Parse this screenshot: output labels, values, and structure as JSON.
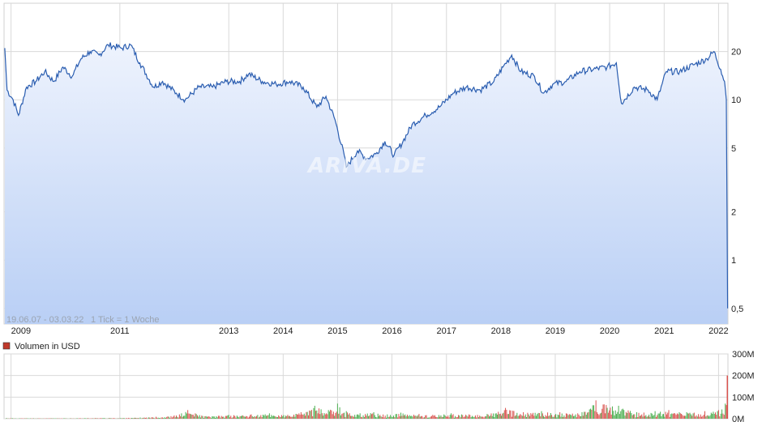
{
  "watermark": "ARIVA.DE",
  "range_info": "19.06.07 - 03.03.22",
  "tick_info": "1 Tick = 1 Woche",
  "volume_legend": "Volumen in USD",
  "colors": {
    "line": "#2a5db0",
    "fill_top": "#eef3fd",
    "fill_bottom": "#b9cff5",
    "grid": "#d9d9d9",
    "volume_up": "#4caf50",
    "volume_down": "#d9534f",
    "legend_box": "#c0392b"
  },
  "chart_data": [
    {
      "type": "area",
      "y_scale": "log",
      "ylim": [
        0.4,
        40
      ],
      "xlim": [
        "2008-11-15",
        "2022-03-05"
      ],
      "x_ticks": [
        {
          "label": "2009",
          "date": "2009-01-01"
        },
        {
          "label": "2011",
          "date": "2011-01-01"
        },
        {
          "label": "2013",
          "date": "2013-01-01"
        },
        {
          "label": "2014",
          "date": "2014-01-01"
        },
        {
          "label": "2015",
          "date": "2015-01-01"
        },
        {
          "label": "2016",
          "date": "2016-01-01"
        },
        {
          "label": "2017",
          "date": "2017-01-01"
        },
        {
          "label": "2018",
          "date": "2018-01-01"
        },
        {
          "label": "2019",
          "date": "2019-01-01"
        },
        {
          "label": "2020",
          "date": "2020-01-01"
        },
        {
          "label": "2021",
          "date": "2021-01-01"
        },
        {
          "label": "2022",
          "date": "2022-01-01"
        }
      ],
      "y_ticks": [
        {
          "label": "20",
          "value": 20
        },
        {
          "label": "10",
          "value": 10
        },
        {
          "label": "5",
          "value": 5
        },
        {
          "label": "2",
          "value": 2
        },
        {
          "label": "1",
          "value": 1
        },
        {
          "label": "0,5",
          "value": 0.5
        }
      ],
      "series": [
        {
          "points": [
            [
              "2008-11-20",
              21
            ],
            [
              "2008-12-05",
              11.5
            ],
            [
              "2009-01-15",
              10
            ],
            [
              "2009-02-20",
              8
            ],
            [
              "2009-04-15",
              12
            ],
            [
              "2009-06-15",
              13
            ],
            [
              "2009-08-15",
              15
            ],
            [
              "2009-10-15",
              13
            ],
            [
              "2009-12-15",
              16
            ],
            [
              "2010-02-15",
              14
            ],
            [
              "2010-04-15",
              18
            ],
            [
              "2010-06-15",
              20
            ],
            [
              "2010-08-15",
              19
            ],
            [
              "2010-10-15",
              22
            ],
            [
              "2011-01-15",
              21
            ],
            [
              "2011-03-15",
              22
            ],
            [
              "2011-05-15",
              17
            ],
            [
              "2011-08-15",
              12
            ],
            [
              "2011-10-15",
              13
            ],
            [
              "2012-01-15",
              11
            ],
            [
              "2012-03-15",
              10
            ],
            [
              "2012-06-15",
              12
            ],
            [
              "2012-09-15",
              12
            ],
            [
              "2012-12-15",
              13
            ],
            [
              "2013-03-15",
              13
            ],
            [
              "2013-05-15",
              14.5
            ],
            [
              "2013-08-15",
              13
            ],
            [
              "2013-11-15",
              12.5
            ],
            [
              "2014-02-15",
              13
            ],
            [
              "2014-05-15",
              12
            ],
            [
              "2014-08-15",
              9
            ],
            [
              "2014-10-15",
              10.5
            ],
            [
              "2014-12-15",
              7.5
            ],
            [
              "2015-02-15",
              4.5
            ],
            [
              "2015-03-01",
              3.8
            ],
            [
              "2015-05-15",
              4.8
            ],
            [
              "2015-07-15",
              4.3
            ],
            [
              "2015-09-15",
              4.6
            ],
            [
              "2015-11-15",
              5.5
            ],
            [
              "2016-01-15",
              4.5
            ],
            [
              "2016-03-15",
              5.5
            ],
            [
              "2016-05-15",
              7
            ],
            [
              "2016-08-15",
              8
            ],
            [
              "2016-11-15",
              9
            ],
            [
              "2017-02-15",
              11
            ],
            [
              "2017-05-15",
              12
            ],
            [
              "2017-08-15",
              11.5
            ],
            [
              "2017-11-15",
              13
            ],
            [
              "2018-01-15",
              16
            ],
            [
              "2018-03-15",
              19
            ],
            [
              "2018-05-15",
              15
            ],
            [
              "2018-08-15",
              14
            ],
            [
              "2018-10-15",
              11
            ],
            [
              "2018-12-15",
              12.5
            ],
            [
              "2019-03-15",
              13
            ],
            [
              "2019-06-15",
              15
            ],
            [
              "2019-09-15",
              15.5
            ],
            [
              "2019-12-15",
              16
            ],
            [
              "2020-02-15",
              17
            ],
            [
              "2020-03-20",
              9.5
            ],
            [
              "2020-06-15",
              12
            ],
            [
              "2020-09-15",
              11.5
            ],
            [
              "2020-11-15",
              10
            ],
            [
              "2021-01-15",
              15
            ],
            [
              "2021-04-15",
              15
            ],
            [
              "2021-07-15",
              16.5
            ],
            [
              "2021-10-15",
              18
            ],
            [
              "2021-12-01",
              20
            ],
            [
              "2022-01-15",
              15.5
            ],
            [
              "2022-02-10",
              13
            ],
            [
              "2022-02-22",
              10
            ],
            [
              "2022-03-03",
              0.5
            ]
          ]
        }
      ]
    },
    {
      "type": "bar",
      "y_label": "Volumen in USD",
      "ylim": [
        0,
        300
      ],
      "y_unit": "M",
      "y_ticks": [
        {
          "label": "300M",
          "value": 300
        },
        {
          "label": "200M",
          "value": 200
        },
        {
          "label": "100M",
          "value": 100
        },
        {
          "label": "0M",
          "value": 0
        }
      ],
      "series": [
        {
          "values": [
            [
              "2008-12-01",
              3
            ],
            [
              "2009-06-01",
              2
            ],
            [
              "2010-06-01",
              3
            ],
            [
              "2011-03-01",
              4
            ],
            [
              "2011-09-01",
              9
            ],
            [
              "2012-01-01",
              15
            ],
            [
              "2012-04-01",
              40
            ],
            [
              "2012-08-01",
              12
            ],
            [
              "2013-01-01",
              18
            ],
            [
              "2013-06-01",
              20
            ],
            [
              "2013-10-01",
              25
            ],
            [
              "2014-02-01",
              18
            ],
            [
              "2014-05-01",
              30
            ],
            [
              "2014-08-01",
              60
            ],
            [
              "2014-11-01",
              40
            ],
            [
              "2015-01-01",
              70
            ],
            [
              "2015-03-01",
              35
            ],
            [
              "2015-06-01",
              25
            ],
            [
              "2015-09-01",
              30
            ],
            [
              "2015-12-01",
              20
            ],
            [
              "2016-03-01",
              28
            ],
            [
              "2016-07-01",
              22
            ],
            [
              "2016-10-01",
              18
            ],
            [
              "2017-02-01",
              25
            ],
            [
              "2017-06-01",
              20
            ],
            [
              "2017-10-01",
              22
            ],
            [
              "2018-02-01",
              50
            ],
            [
              "2018-06-01",
              30
            ],
            [
              "2018-10-01",
              35
            ],
            [
              "2019-02-01",
              30
            ],
            [
              "2019-06-01",
              25
            ],
            [
              "2019-10-01",
              85
            ],
            [
              "2020-03-01",
              60
            ],
            [
              "2020-07-01",
              30
            ],
            [
              "2020-11-01",
              35
            ],
            [
              "2021-02-01",
              40
            ],
            [
              "2021-06-01",
              30
            ],
            [
              "2021-10-01",
              35
            ],
            [
              "2022-01-01",
              40
            ],
            [
              "2022-02-15",
              70
            ],
            [
              "2022-03-01",
              200
            ]
          ]
        }
      ]
    }
  ]
}
